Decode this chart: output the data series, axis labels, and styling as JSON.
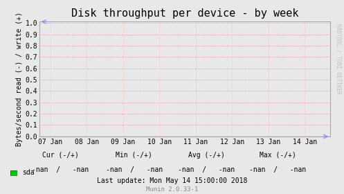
{
  "title": "Disk throughput per device - by week",
  "ylabel": "Bytes/second read (-) / write (+)",
  "background_color": "#e8e8e8",
  "plot_bg_color": "#e8e8e8",
  "grid_color_h": "#ff8888",
  "grid_color_v": "#ffbbbb",
  "border_color": "#999999",
  "ylim": [
    0.0,
    1.0
  ],
  "yticks": [
    0.0,
    0.1,
    0.2,
    0.3,
    0.4,
    0.5,
    0.6,
    0.7,
    0.8,
    0.9,
    1.0
  ],
  "xtick_labels": [
    "07 Jan",
    "08 Jan",
    "09 Jan",
    "10 Jan",
    "11 Jan",
    "12 Jan",
    "13 Jan",
    "14 Jan"
  ],
  "xtick_positions": [
    0,
    1,
    2,
    3,
    4,
    5,
    6,
    7
  ],
  "xlim": [
    -0.3,
    7.7
  ],
  "legend_item": "sda",
  "legend_color": "#00cc00",
  "footer_update": "Last update: Mon May 14 15:00:00 2018",
  "footer_munin": "Munin 2.0.33-1",
  "watermark": "RRDTOOL / TOBI OETIKER",
  "title_fontsize": 11,
  "axis_label_fontsize": 7,
  "tick_fontsize": 7,
  "footer_fontsize": 7,
  "watermark_fontsize": 5.5,
  "line_color": "#0000ff",
  "arrow_color": "#8888ff"
}
